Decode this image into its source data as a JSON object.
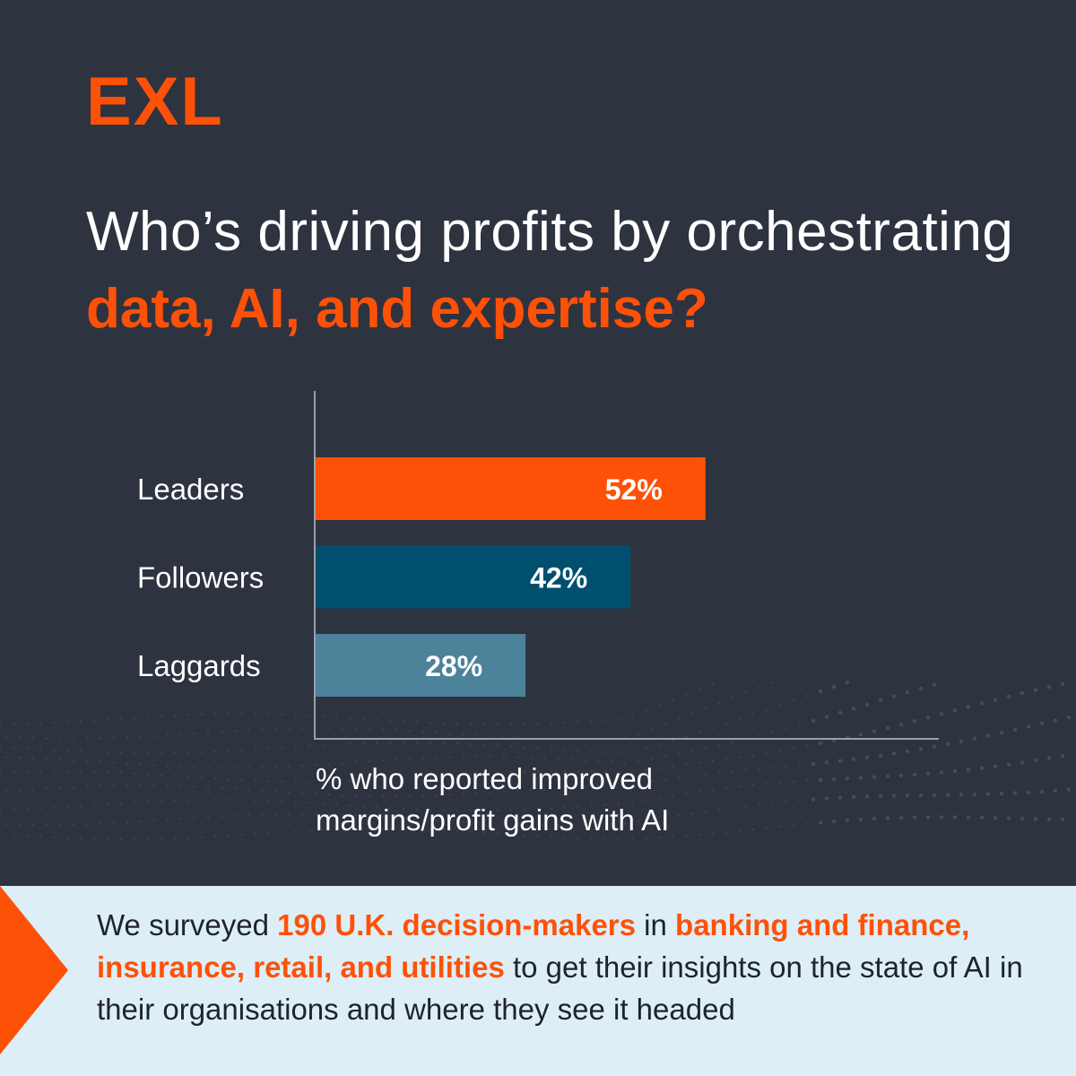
{
  "brand": {
    "logo_text": "EXL",
    "accent_color": "#fe5108"
  },
  "headline": {
    "line1": "Who’s driving profits by orchestrating",
    "line2": "data, AI, and expertise?"
  },
  "chart_data": {
    "type": "bar",
    "orientation": "horizontal",
    "categories": [
      "Leaders",
      "Followers",
      "Laggards"
    ],
    "values": [
      52,
      42,
      28
    ],
    "value_labels": [
      "52%",
      "42%",
      "28%"
    ],
    "colors": [
      "#fe5108",
      "#004f6e",
      "#4d829b"
    ],
    "xlim": [
      0,
      83
    ],
    "grid": false,
    "caption_line1": "% who reported improved",
    "caption_line2": "margins/profit gains with AI"
  },
  "footer": {
    "t1": "We surveyed ",
    "h1": "190 U.K. decision-makers",
    "t2": " in ",
    "h2": "banking and finance, insurance, retail, and utilities",
    "t3": " to get their insights on the state of AI in their organisations and where they see it headed"
  }
}
